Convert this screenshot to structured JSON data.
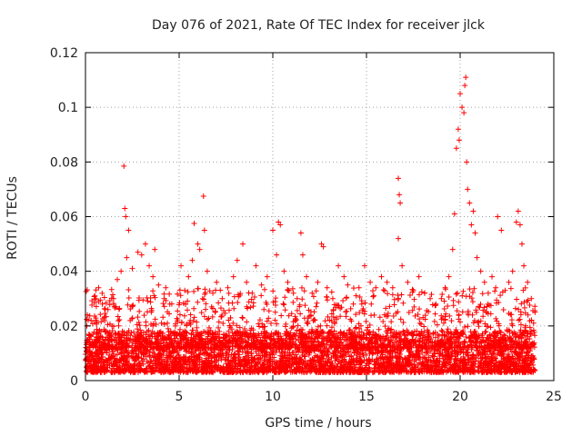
{
  "chart_data": {
    "type": "scatter",
    "title": "Day 076 of 2021, Rate Of TEC Index for receiver jlck",
    "xlabel": "GPS time / hours",
    "ylabel": "ROTI / TECUs",
    "xlim": [
      0,
      25
    ],
    "ylim": [
      0,
      0.12
    ],
    "xticks": [
      0,
      5,
      10,
      15,
      20,
      25
    ],
    "xtick_labels": [
      "0",
      "5",
      "10",
      "15",
      "20",
      "25"
    ],
    "yticks": [
      0,
      0.02,
      0.04,
      0.06,
      0.08,
      0.1,
      0.12
    ],
    "ytick_labels": [
      "0",
      "0.02",
      "0.04",
      "0.06",
      "0.08",
      "0.1",
      "0.12"
    ],
    "grid": true,
    "marker": "+",
    "color": "#ff0000",
    "dense_band": {
      "x_range": [
        0,
        24
      ],
      "y_range": [
        0.003,
        0.018
      ]
    },
    "series": [
      {
        "values": [
          [
            0.1,
            0.024
          ],
          [
            0.3,
            0.022
          ],
          [
            0.5,
            0.031
          ],
          [
            0.7,
            0.034
          ],
          [
            0.9,
            0.028
          ],
          [
            1.2,
            0.026
          ],
          [
            1.5,
            0.03
          ],
          [
            1.7,
            0.037
          ],
          [
            1.9,
            0.04
          ],
          [
            2.05,
            0.0785
          ],
          [
            2.1,
            0.063
          ],
          [
            2.15,
            0.06
          ],
          [
            2.3,
            0.055
          ],
          [
            2.2,
            0.045
          ],
          [
            2.5,
            0.041
          ],
          [
            2.8,
            0.047
          ],
          [
            3.0,
            0.046
          ],
          [
            3.2,
            0.05
          ],
          [
            3.4,
            0.042
          ],
          [
            3.6,
            0.038
          ],
          [
            3.7,
            0.048
          ],
          [
            3.9,
            0.035
          ],
          [
            4.2,
            0.03
          ],
          [
            4.5,
            0.028
          ],
          [
            4.8,
            0.02
          ],
          [
            5.1,
            0.042
          ],
          [
            5.3,
            0.033
          ],
          [
            5.5,
            0.038
          ],
          [
            5.7,
            0.044
          ],
          [
            5.8,
            0.0575
          ],
          [
            6.0,
            0.05
          ],
          [
            6.1,
            0.048
          ],
          [
            6.3,
            0.0675
          ],
          [
            6.35,
            0.055
          ],
          [
            6.5,
            0.04
          ],
          [
            6.8,
            0.032
          ],
          [
            7.0,
            0.036
          ],
          [
            7.3,
            0.03
          ],
          [
            7.6,
            0.034
          ],
          [
            7.9,
            0.038
          ],
          [
            8.1,
            0.044
          ],
          [
            8.4,
            0.05
          ],
          [
            8.6,
            0.036
          ],
          [
            8.9,
            0.032
          ],
          [
            9.1,
            0.042
          ],
          [
            9.4,
            0.035
          ],
          [
            9.7,
            0.038
          ],
          [
            10.0,
            0.055
          ],
          [
            10.2,
            0.046
          ],
          [
            10.3,
            0.058
          ],
          [
            10.4,
            0.057
          ],
          [
            10.6,
            0.04
          ],
          [
            10.8,
            0.036
          ],
          [
            11.1,
            0.032
          ],
          [
            11.3,
            0.03
          ],
          [
            11.5,
            0.054
          ],
          [
            11.6,
            0.046
          ],
          [
            11.8,
            0.038
          ],
          [
            12.1,
            0.032
          ],
          [
            12.4,
            0.036
          ],
          [
            12.6,
            0.05
          ],
          [
            12.7,
            0.049
          ],
          [
            12.9,
            0.034
          ],
          [
            13.2,
            0.03
          ],
          [
            13.5,
            0.042
          ],
          [
            13.8,
            0.038
          ],
          [
            14.0,
            0.035
          ],
          [
            14.3,
            0.028
          ],
          [
            14.6,
            0.034
          ],
          [
            14.9,
            0.042
          ],
          [
            15.2,
            0.036
          ],
          [
            15.5,
            0.034
          ],
          [
            15.8,
            0.038
          ],
          [
            16.1,
            0.036
          ],
          [
            16.4,
            0.034
          ],
          [
            16.7,
            0.074
          ],
          [
            16.75,
            0.068
          ],
          [
            16.8,
            0.065
          ],
          [
            16.7,
            0.052
          ],
          [
            16.9,
            0.042
          ],
          [
            17.2,
            0.036
          ],
          [
            17.5,
            0.033
          ],
          [
            17.8,
            0.038
          ],
          [
            18.1,
            0.032
          ],
          [
            18.4,
            0.03
          ],
          [
            18.7,
            0.028
          ],
          [
            19.0,
            0.03
          ],
          [
            19.2,
            0.034
          ],
          [
            19.4,
            0.038
          ],
          [
            19.6,
            0.048
          ],
          [
            19.7,
            0.061
          ],
          [
            19.8,
            0.085
          ],
          [
            19.9,
            0.092
          ],
          [
            19.95,
            0.088
          ],
          [
            20.0,
            0.105
          ],
          [
            20.1,
            0.1
          ],
          [
            20.2,
            0.098
          ],
          [
            20.25,
            0.108
          ],
          [
            20.3,
            0.111
          ],
          [
            20.35,
            0.08
          ],
          [
            20.4,
            0.07
          ],
          [
            20.5,
            0.065
          ],
          [
            20.6,
            0.057
          ],
          [
            20.7,
            0.062
          ],
          [
            20.8,
            0.054
          ],
          [
            20.9,
            0.045
          ],
          [
            21.1,
            0.04
          ],
          [
            21.3,
            0.036
          ],
          [
            21.5,
            0.032
          ],
          [
            21.7,
            0.038
          ],
          [
            21.9,
            0.034
          ],
          [
            22.0,
            0.06
          ],
          [
            22.2,
            0.055
          ],
          [
            22.4,
            0.033
          ],
          [
            22.6,
            0.036
          ],
          [
            22.8,
            0.04
          ],
          [
            23.0,
            0.058
          ],
          [
            23.1,
            0.062
          ],
          [
            23.2,
            0.057
          ],
          [
            23.3,
            0.05
          ],
          [
            23.4,
            0.042
          ],
          [
            23.6,
            0.036
          ],
          [
            23.8,
            0.03
          ],
          [
            24.0,
            0.025
          ]
        ]
      }
    ]
  }
}
